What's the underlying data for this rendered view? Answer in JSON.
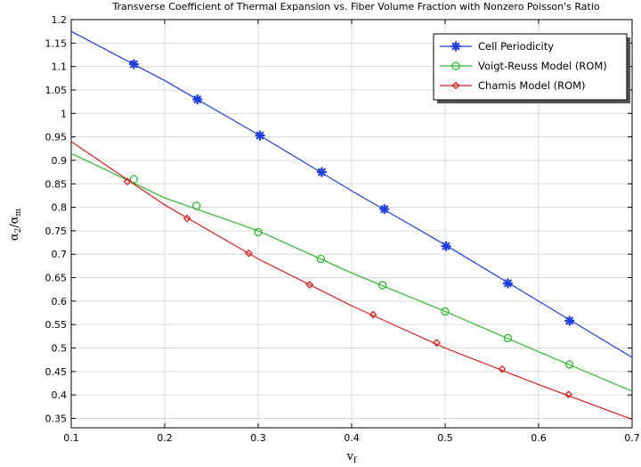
{
  "chart_data": {
    "type": "line",
    "title": "Transverse Coefficient of Thermal Expansion vs. Fiber Volume Fraction with Nonzero Poisson's Ratio",
    "xlabel_main": "v",
    "xlabel_sub": "f",
    "ylabel_a": "α",
    "ylabel_a_sub": "2",
    "ylabel_sep": "/",
    "ylabel_b": "α",
    "ylabel_b_sub": "m",
    "xlim": [
      0.1,
      0.7
    ],
    "ylim": [
      0.33,
      1.2
    ],
    "xticks": [
      "0.1",
      "0.2",
      "0.3",
      "0.4",
      "0.5",
      "0.6",
      "0.7"
    ],
    "yticks": [
      "0.35",
      "0.4",
      "0.45",
      "0.5",
      "0.55",
      "0.6",
      "0.65",
      "0.7",
      "0.75",
      "0.8",
      "0.85",
      "0.9",
      "0.95",
      "1",
      "1.05",
      "1.1",
      "1.15",
      "1.2"
    ],
    "grid": true,
    "legend_position": "top-right",
    "series": [
      {
        "name": "Cell Periodicity",
        "color": "#1f3ee0",
        "marker": "asterisk",
        "x": [
          0.1,
          0.2,
          0.3,
          0.4,
          0.5,
          0.6,
          0.7
        ],
        "y": [
          1.175,
          1.07,
          0.955,
          0.835,
          0.72,
          0.6,
          0.48
        ],
        "marker_x": [
          0.167,
          0.235,
          0.302,
          0.368,
          0.435,
          0.501,
          0.567,
          0.633
        ],
        "marker_y": [
          1.105,
          1.03,
          0.953,
          0.875,
          0.796,
          0.717,
          0.638,
          0.558
        ]
      },
      {
        "name": "Voigt-Reuss Model (ROM)",
        "color": "#2db82d",
        "marker": "circle",
        "x": [
          0.1,
          0.2,
          0.3,
          0.4,
          0.5,
          0.6,
          0.7
        ],
        "y": [
          0.915,
          0.82,
          0.75,
          0.66,
          0.578,
          0.492,
          0.408
        ],
        "marker_x": [
          0.167,
          0.234,
          0.3,
          0.367,
          0.433,
          0.5,
          0.567,
          0.633
        ],
        "marker_y": [
          0.86,
          0.803,
          0.747,
          0.69,
          0.634,
          0.578,
          0.521,
          0.465
        ]
      },
      {
        "name": "Chamis Model (ROM)",
        "color": "#d62020",
        "marker": "diamond",
        "x": [
          0.1,
          0.2,
          0.3,
          0.4,
          0.5,
          0.6,
          0.7
        ],
        "y": [
          0.94,
          0.805,
          0.69,
          0.59,
          0.5,
          0.422,
          0.348
        ],
        "marker_x": [
          0.16,
          0.224,
          0.29,
          0.355,
          0.423,
          0.491,
          0.561,
          0.632
        ],
        "marker_y": [
          0.855,
          0.776,
          0.702,
          0.635,
          0.571,
          0.511,
          0.455,
          0.401
        ]
      }
    ]
  }
}
